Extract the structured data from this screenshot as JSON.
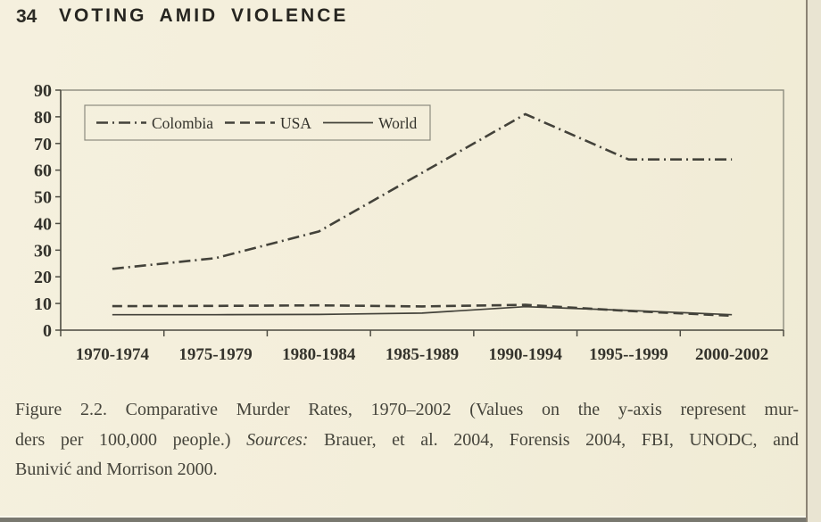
{
  "page": {
    "number": "34",
    "running_head": "VOTING AMID VIOLENCE"
  },
  "caption": {
    "line1": "Figure 2.2. Comparative Murder Rates, 1970–2002 (Values on the y-axis represent mur-",
    "line2_pre": "ders per 100,000 people.) ",
    "line2_italic": "Sources:",
    "line2_post": " Brauer, et al. 2004, Forensis 2004, FBI, UNODC, and",
    "line3": "Bunivić and Morrison 2000."
  },
  "chart_data": {
    "type": "line",
    "title": "",
    "categories": [
      "1970-1974",
      "1975-1979",
      "1980-1984",
      "1985-1989",
      "1990-1994",
      "1995--1999",
      "2000-2002"
    ],
    "series": [
      {
        "name": "Colombia",
        "style": "dash-dot",
        "values": [
          23,
          27,
          37,
          59,
          81,
          64,
          64
        ]
      },
      {
        "name": "USA",
        "style": "dashed",
        "values": [
          9,
          9.1,
          9.3,
          8.9,
          9.5,
          7.2,
          5.4
        ]
      },
      {
        "name": "World",
        "style": "solid",
        "values": [
          5.8,
          5.8,
          5.9,
          6.4,
          8.8,
          7.4,
          5.8
        ]
      }
    ],
    "ylabel": "",
    "xlabel": "",
    "ylim": [
      0,
      90
    ],
    "ytick_interval": 10,
    "grid": false,
    "legend_position": "top-left-inside",
    "ink_color": "#43423a",
    "paper_color": "#f3eeda"
  }
}
